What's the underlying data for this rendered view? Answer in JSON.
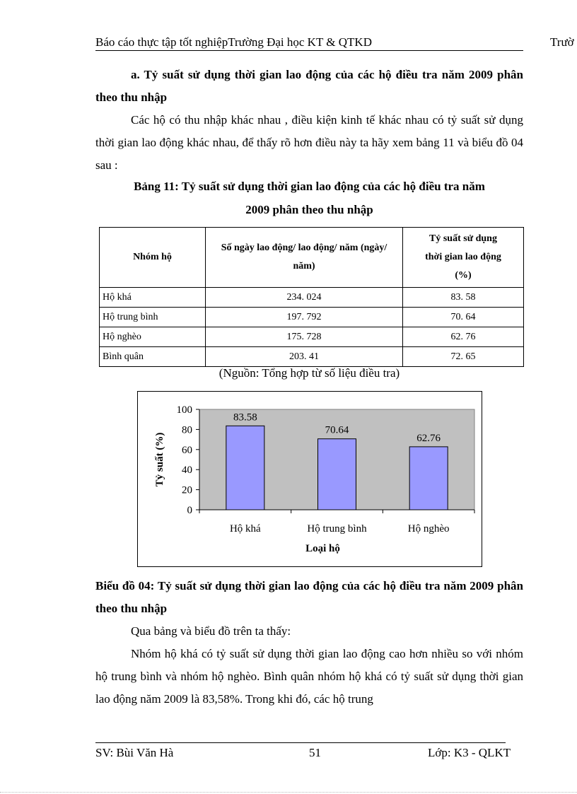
{
  "header": {
    "left": "Báo cáo thực tập tốt nghiệpTrường Đại học KT & QTKD",
    "right": "Trườ"
  },
  "section_title": "a. Tỷ suất sử dụng thời gian lao động của các hộ điều tra năm 2009 phân theo thu nhập",
  "intro": "Các hộ có thu nhập khác nhau , điều kiện kinh tế khác nhau có tỷ suất sử dụng thời gian lao động khác nhau, để thấy rõ hơn điều này ta hãy xem bảng 11 và biểu đồ 04 sau :",
  "table_title_1": "Bảng 11: Tỷ suất sử dụng thời gian lao động của các hộ điều tra năm",
  "table_title_2": "2009 phân theo thu nhập",
  "table": {
    "headers": [
      "Nhóm hộ",
      "Số ngày lao động/ lao động/ năm (ngày/ năm)",
      "Tỷ suất sử dụng thời gian lao động (%)"
    ],
    "rows": [
      [
        "Hộ khá",
        "234. 024",
        "83. 58"
      ],
      [
        "Hộ trung bình",
        "197. 792",
        "70. 64"
      ],
      [
        "Hộ nghèo",
        "175. 728",
        "62. 76"
      ],
      [
        "Bình  quân",
        "203. 41",
        "72. 65"
      ]
    ]
  },
  "source": "(Nguồn: Tổng hợp từ số liệu  điều tra)",
  "chart_data": {
    "type": "bar",
    "categories": [
      "Hộ khá",
      "Hộ trung bình",
      "Hộ nghèo"
    ],
    "values": [
      83.58,
      70.64,
      62.76
    ],
    "data_labels": [
      "83.58",
      "70.64",
      "62.76"
    ],
    "xlabel": "Loại hộ",
    "ylabel": "Tỷ suất (%)",
    "ylim": [
      0,
      100
    ],
    "yticks": [
      "0",
      "20",
      "40",
      "60",
      "80",
      "100"
    ],
    "bar_color": "#9999ff",
    "plot_background": "#c0c0c0",
    "grid": false,
    "legend": "none"
  },
  "chart_caption": "Biểu đồ 04: Tỷ suất sử dụng thời gian lao động của các hộ điều tra năm 2009 phân theo thu nhập",
  "paragraphs": [
    "Qua bảng và biểu đồ trên ta thấy:",
    "Nhóm hộ khá có tỷ suất sử dụng thời gian lao động cao hơn nhiều so với nhóm hộ trung bình và nhóm hộ nghèo. Bình quân nhóm hộ khá có tỷ suất sử dụng thời gian lao động năm 2009 là 83,58%. Trong khi đó, các hộ trung"
  ],
  "footer": {
    "left": "SV: Bùi  Văn Hà",
    "page": "51",
    "right": "Lớp: K3 - QLKT"
  }
}
